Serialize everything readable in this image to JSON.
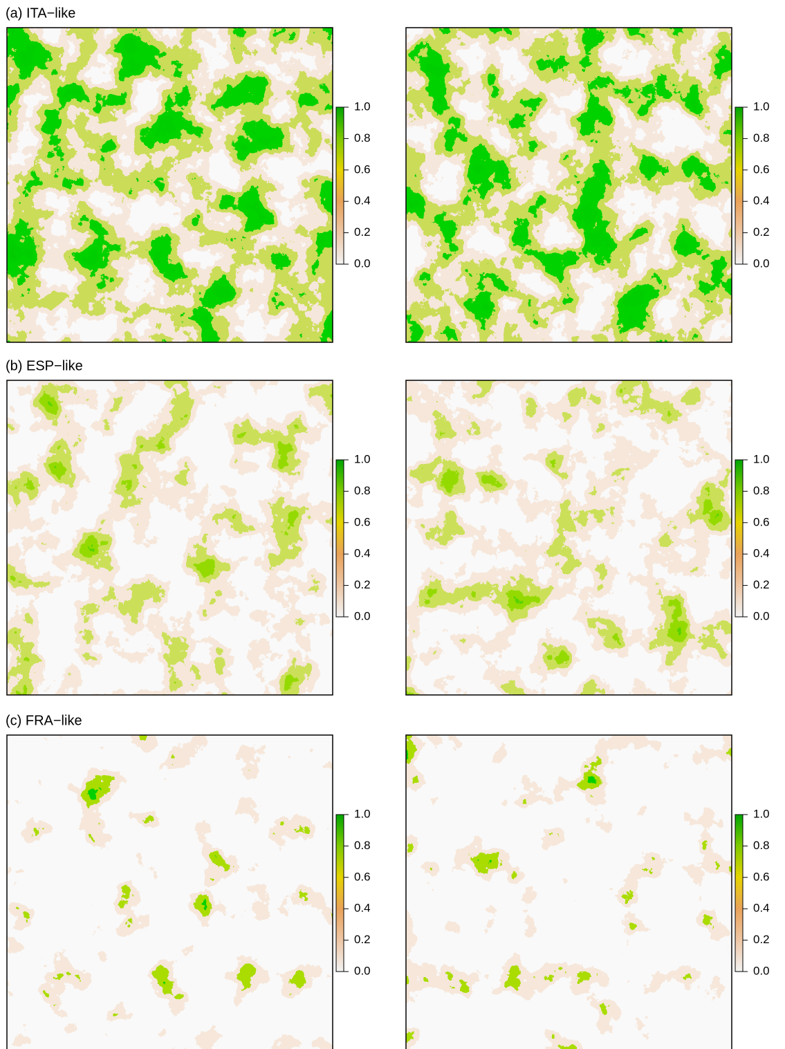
{
  "chart_data": [
    {
      "type": "raster",
      "title": "(a) ITA−like",
      "colorbar": {
        "lim": [
          0,
          1
        ],
        "ticks": [
          {
            "value": 0,
            "label": "0.0"
          },
          {
            "value": 0.2,
            "label": "0.2"
          },
          {
            "value": 0.4,
            "label": "0.4"
          },
          {
            "value": 0.6,
            "label": "0.6"
          },
          {
            "value": 0.8,
            "label": "0.8"
          },
          {
            "value": 1,
            "label": "1.0"
          }
        ],
        "colors": [
          "#f2f2f2",
          "#eec7a6",
          "#e9a25a",
          "#e6d400",
          "#7fca00",
          "#00a600"
        ]
      }
    },
    {
      "type": "raster",
      "colorbar": {
        "lim": [
          0,
          1
        ],
        "ticks": [
          {
            "value": 0,
            "label": "0.0"
          },
          {
            "value": 0.2,
            "label": "0.2"
          },
          {
            "value": 0.4,
            "label": "0.4"
          },
          {
            "value": 0.6,
            "label": "0.6"
          },
          {
            "value": 0.8,
            "label": "0.8"
          },
          {
            "value": 1,
            "label": "1.0"
          }
        ],
        "colors": [
          "#f2f2f2",
          "#eec7a6",
          "#e9a25a",
          "#e6d400",
          "#7fca00",
          "#00a600"
        ]
      }
    },
    {
      "type": "raster",
      "title": "(b) ESP−like",
      "colorbar": {
        "lim": [
          0,
          1
        ],
        "ticks": [
          {
            "value": 0,
            "label": "0.0"
          },
          {
            "value": 0.2,
            "label": "0.2"
          },
          {
            "value": 0.4,
            "label": "0.4"
          },
          {
            "value": 0.6,
            "label": "0.6"
          },
          {
            "value": 0.8,
            "label": "0.8"
          },
          {
            "value": 1,
            "label": "1.0"
          }
        ],
        "colors": [
          "#f2f2f2",
          "#eec7a6",
          "#e9a25a",
          "#e6d400",
          "#7fca00",
          "#00a600"
        ]
      }
    },
    {
      "type": "raster",
      "colorbar": {
        "lim": [
          0,
          1
        ],
        "ticks": [
          {
            "value": 0,
            "label": "0.0"
          },
          {
            "value": 0.2,
            "label": "0.2"
          },
          {
            "value": 0.4,
            "label": "0.4"
          },
          {
            "value": 0.6,
            "label": "0.6"
          },
          {
            "value": 0.8,
            "label": "0.8"
          },
          {
            "value": 1,
            "label": "1.0"
          }
        ],
        "colors": [
          "#f2f2f2",
          "#eec7a6",
          "#e9a25a",
          "#e6d400",
          "#7fca00",
          "#00a600"
        ]
      }
    },
    {
      "type": "raster",
      "title": "(c) FRA−like",
      "colorbar": {
        "lim": [
          0,
          1
        ],
        "ticks": [
          {
            "value": 0,
            "label": "0.0"
          },
          {
            "value": 0.2,
            "label": "0.2"
          },
          {
            "value": 0.4,
            "label": "0.4"
          },
          {
            "value": 0.6,
            "label": "0.6"
          },
          {
            "value": 0.8,
            "label": "0.8"
          },
          {
            "value": 1,
            "label": "1.0"
          }
        ],
        "colors": [
          "#f2f2f2",
          "#eec7a6",
          "#e9a25a",
          "#e6d400",
          "#7fca00",
          "#00a600"
        ]
      }
    },
    {
      "type": "raster",
      "colorbar": {
        "lim": [
          0,
          1
        ],
        "ticks": [
          {
            "value": 0,
            "label": "0.0"
          },
          {
            "value": 0.2,
            "label": "0.2"
          },
          {
            "value": 0.4,
            "label": "0.4"
          },
          {
            "value": 0.6,
            "label": "0.6"
          },
          {
            "value": 0.8,
            "label": "0.8"
          },
          {
            "value": 1,
            "label": "1.0"
          }
        ],
        "colors": [
          "#f2f2f2",
          "#eec7a6",
          "#e9a25a",
          "#e6d400",
          "#7fca00",
          "#00a600"
        ]
      }
    }
  ]
}
